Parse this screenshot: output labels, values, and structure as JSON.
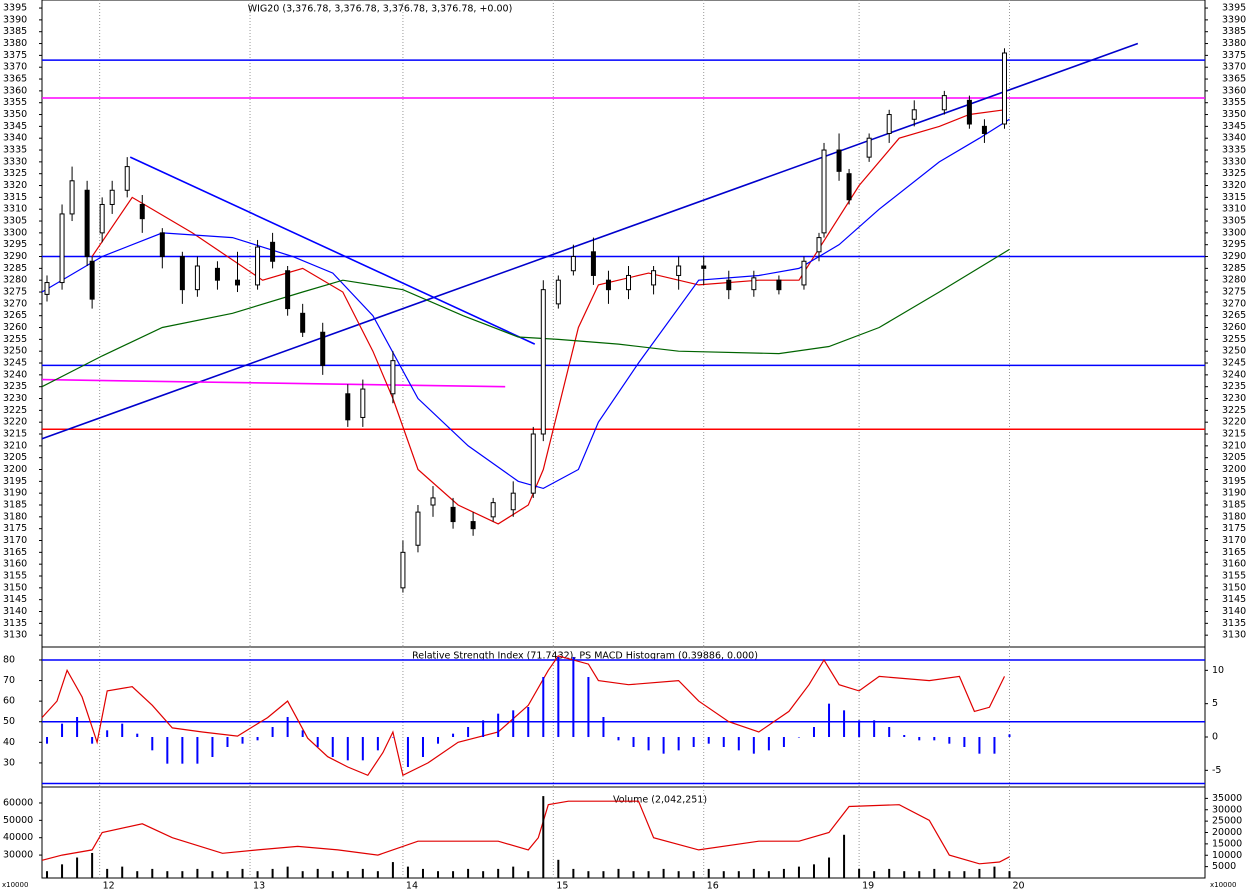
{
  "chart_data": [
    {
      "type": "candlestick",
      "title": "WIG20 (3,376.78, 3,376.78, 3,376.78, 3,376.78, +0.00)",
      "x": [
        1,
        4,
        6,
        9,
        10,
        12,
        14,
        17,
        20,
        24,
        28,
        31,
        35,
        39,
        43,
        46,
        49,
        52,
        56,
        61,
        64,
        70,
        72,
        75,
        78,
        82,
        86,
        90,
        94,
        98,
        100,
        103,
        106,
        110,
        113,
        117,
        122,
        127,
        132,
        137,
        142,
        147,
        152,
        155,
        156,
        159,
        161,
        165,
        169,
        174,
        180,
        185,
        188,
        192
      ],
      "open": [
        3274,
        3279,
        3308,
        3318,
        3288,
        3300,
        3312,
        3318,
        3312,
        3300,
        3290,
        3276,
        3285,
        3280,
        3278,
        3296,
        3284,
        3266,
        3258,
        3232,
        3222,
        3232,
        3150,
        3168,
        3185,
        3184,
        3178,
        3180,
        3183,
        3190,
        3215,
        3270,
        3284,
        3292,
        3280,
        3276,
        3278,
        3282,
        3286,
        3280,
        3276,
        3280,
        3278,
        3292,
        3300,
        3335,
        3325,
        3332,
        3342,
        3348,
        3352,
        3356,
        3345,
        3346
      ],
      "high": [
        3282,
        3312,
        3328,
        3322,
        3290,
        3315,
        3322,
        3332,
        3316,
        3302,
        3292,
        3290,
        3288,
        3292,
        3297,
        3300,
        3286,
        3270,
        3262,
        3236,
        3238,
        3250,
        3170,
        3185,
        3193,
        3188,
        3182,
        3188,
        3195,
        3218,
        3280,
        3282,
        3295,
        3298,
        3284,
        3286,
        3286,
        3290,
        3290,
        3284,
        3284,
        3282,
        3290,
        3300,
        3338,
        3342,
        3327,
        3342,
        3352,
        3356,
        3360,
        3358,
        3348,
        3378
      ],
      "low": [
        3271,
        3276,
        3305,
        3286,
        3268,
        3296,
        3308,
        3315,
        3300,
        3285,
        3270,
        3273,
        3276,
        3275,
        3276,
        3285,
        3265,
        3256,
        3240,
        3218,
        3218,
        3228,
        3148,
        3165,
        3180,
        3175,
        3172,
        3178,
        3180,
        3188,
        3212,
        3268,
        3282,
        3278,
        3270,
        3272,
        3274,
        3276,
        3278,
        3272,
        3273,
        3274,
        3276,
        3288,
        3298,
        3322,
        3312,
        3330,
        3338,
        3345,
        3350,
        3344,
        3338,
        3344
      ],
      "close": [
        3279,
        3308,
        3322,
        3290,
        3272,
        3312,
        3318,
        3328,
        3306,
        3290,
        3276,
        3286,
        3280,
        3278,
        3294,
        3288,
        3268,
        3258,
        3244,
        3221,
        3234,
        3246,
        3165,
        3182,
        3188,
        3178,
        3175,
        3186,
        3190,
        3215,
        3276,
        3280,
        3290,
        3282,
        3276,
        3282,
        3284,
        3286,
        3285,
        3276,
        3281,
        3276,
        3288,
        3298,
        3335,
        3326,
        3314,
        3340,
        3350,
        3352,
        3358,
        3346,
        3342,
        3376
      ],
      "up_color": "#ffffff",
      "down_color": "#000000",
      "series": [
        {
          "color": "#e00000",
          "x": [
            10,
            18,
            30,
            44,
            52,
            60,
            66,
            70,
            75,
            83,
            91,
            97,
            100,
            107,
            111,
            121,
            131,
            143,
            151,
            157,
            163,
            171,
            179,
            185,
            192
          ],
          "values": [
            3290,
            3315,
            3300,
            3280,
            3285,
            3275,
            3250,
            3230,
            3200,
            3185,
            3177,
            3185,
            3200,
            3260,
            3278,
            3283,
            3278,
            3280,
            3280,
            3300,
            3320,
            3340,
            3345,
            3350,
            3352
          ]
        },
        {
          "color": "#0000ff",
          "x": [
            0,
            12,
            24,
            38,
            50,
            58,
            66,
            75,
            85,
            95,
            100,
            107,
            111,
            119,
            131,
            143,
            151,
            159,
            167,
            179,
            187,
            193
          ],
          "values": [
            3275,
            3290,
            3300,
            3298,
            3290,
            3283,
            3265,
            3230,
            3210,
            3195,
            3192,
            3200,
            3220,
            3245,
            3280,
            3282,
            3285,
            3295,
            3310,
            3330,
            3340,
            3348
          ]
        },
        {
          "color": "#006400",
          "x": [
            0,
            12,
            24,
            38,
            52,
            60,
            72,
            84,
            95,
            103,
            115,
            127,
            147,
            157,
            167,
            179,
            193
          ],
          "values": [
            3235,
            3248,
            3260,
            3266,
            3275,
            3280,
            3276,
            3265,
            3256,
            3255,
            3253,
            3250,
            3249,
            3252,
            3260,
            3275,
            3293
          ]
        }
      ],
      "levels": [
        {
          "value": 3373,
          "color": "#0000ff"
        },
        {
          "value": 3357,
          "color": "#ff00ff"
        },
        {
          "value": 3290,
          "color": "#0000ff"
        },
        {
          "value": 3244,
          "color": "#0000ff"
        },
        {
          "value": 3217,
          "color": "#ff0000"
        }
      ],
      "trendlines": [
        {
          "color": "#0000cc",
          "x": [
            0,
            218.6
          ],
          "y": [
            3213,
            3380
          ]
        },
        {
          "color": "#0000ff",
          "x": [
            17.6,
            98.3
          ],
          "y": [
            3332,
            3253
          ]
        },
        {
          "color": "#ff00ff",
          "x": [
            0,
            92.4
          ],
          "y": [
            3238,
            3235
          ]
        }
      ],
      "xlim": [
        0,
        232
      ],
      "xticks": [
        {
          "value": 11.5,
          "label": "12"
        },
        {
          "value": 41.5,
          "label": "13"
        },
        {
          "value": 72,
          "label": "14"
        },
        {
          "value": 102,
          "label": "15"
        },
        {
          "value": 132,
          "label": "16"
        },
        {
          "value": 163,
          "label": "19"
        },
        {
          "value": 193,
          "label": "20"
        }
      ],
      "ylim": [
        3125,
        3398.4
      ],
      "yticks": [
        3130,
        3135,
        3140,
        3145,
        3150,
        3155,
        3160,
        3165,
        3170,
        3175,
        3180,
        3185,
        3190,
        3195,
        3200,
        3205,
        3210,
        3215,
        3220,
        3225,
        3230,
        3235,
        3240,
        3245,
        3250,
        3255,
        3260,
        3265,
        3270,
        3275,
        3280,
        3285,
        3290,
        3295,
        3300,
        3305,
        3310,
        3315,
        3320,
        3325,
        3330,
        3335,
        3340,
        3345,
        3350,
        3355,
        3360,
        3365,
        3370,
        3375,
        3380,
        3385,
        3390,
        3395
      ]
    },
    {
      "type": "combo",
      "title": "Relative Strength Index (71.7432), PS MACD Histogram (0.39886, 0.000)",
      "ylim": [
        18.3,
        86.3
      ],
      "yticks": [
        30,
        40,
        50,
        60,
        70,
        80
      ],
      "y2lim": [
        -7.5,
        13.5
      ],
      "y2ticks": [
        -5,
        0,
        5,
        10
      ],
      "levels": [
        {
          "value": 80,
          "color": "#0000ff"
        },
        {
          "value": 50,
          "color": "#0000ff"
        },
        {
          "value": 20,
          "color": "#0000ff"
        }
      ],
      "series": [
        {
          "style": "line",
          "color": "#e00000",
          "x": [
            0,
            3,
            5,
            8,
            11,
            13,
            18,
            22,
            26,
            32,
            39,
            45,
            49,
            53,
            57,
            61,
            65,
            68,
            70,
            72,
            77,
            83,
            91,
            97,
            101,
            103,
            109,
            111,
            117,
            127,
            131,
            137,
            143,
            149,
            153,
            156,
            159,
            163,
            167,
            177,
            183,
            186,
            189,
            192
          ],
          "values": [
            52,
            60,
            75,
            62,
            40,
            65,
            67,
            58,
            47,
            45,
            43,
            52,
            60,
            42,
            33,
            28,
            24,
            35,
            45,
            24,
            30,
            40,
            45,
            58,
            75,
            82,
            78,
            70,
            68,
            70,
            60,
            50,
            45,
            55,
            68,
            80,
            68,
            65,
            72,
            70,
            72,
            55,
            57,
            72
          ]
        },
        {
          "style": "bar",
          "axis": "y2",
          "color": "#0000ff",
          "x": [
            1,
            4,
            7,
            10,
            13,
            16,
            19,
            22,
            25,
            28,
            31,
            34,
            37,
            40,
            43,
            46,
            49,
            52,
            55,
            58,
            61,
            64,
            67,
            70,
            73,
            76,
            79,
            82,
            85,
            88,
            91,
            94,
            97,
            100,
            103,
            106,
            109,
            112,
            115,
            118,
            121,
            124,
            127,
            130,
            133,
            136,
            139,
            142,
            145,
            148,
            151,
            154,
            157,
            160,
            163,
            166,
            169,
            172,
            175,
            178,
            181,
            184,
            187,
            190,
            193
          ],
          "values": [
            -1,
            2,
            3,
            -1,
            1,
            2,
            0.5,
            -2,
            -4,
            -4,
            -4,
            -3,
            -1.5,
            -1,
            -0.5,
            1.5,
            3,
            1,
            -1.5,
            -3,
            -3.5,
            -3.5,
            -2,
            0,
            -4.5,
            -3,
            -1,
            0.5,
            1.5,
            2.5,
            3.5,
            4,
            4.5,
            9,
            12,
            12,
            9,
            3,
            -0.5,
            -1.5,
            -2,
            -2.5,
            -2,
            -1.5,
            -1,
            -1.5,
            -2,
            -2.5,
            -2,
            -1.5,
            0,
            1.5,
            5,
            4,
            2.5,
            2.5,
            1.5,
            0.3,
            -0.5,
            -0.5,
            -1,
            -1.5,
            -2.5,
            -2.5,
            0.4
          ]
        }
      ]
    },
    {
      "type": "combo",
      "title": "Volume (2,042,251)",
      "ylim": [
        16800,
        69200
      ],
      "yticks": [
        30000,
        40000,
        50000,
        60000
      ],
      "y2lim": [
        0,
        40000
      ],
      "y2ticks": [
        5000,
        10000,
        15000,
        20000,
        25000,
        30000,
        35000
      ],
      "y_unit": "x10000",
      "y2_unit": "x10000",
      "series": [
        {
          "style": "line",
          "color": "#e00000",
          "x": [
            0,
            4,
            10,
            12,
            20,
            26,
            36,
            43,
            51,
            59,
            67,
            75,
            83,
            91,
            97,
            99,
            101,
            105,
            119,
            122,
            131,
            143,
            151,
            157,
            161,
            171,
            177,
            181,
            187,
            191,
            193
          ],
          "values": [
            27000,
            30000,
            33000,
            43000,
            48000,
            40000,
            31000,
            33000,
            35000,
            33000,
            30000,
            38000,
            38000,
            38000,
            33000,
            40000,
            59000,
            61000,
            61000,
            40000,
            33000,
            38000,
            38000,
            43000,
            58000,
            59000,
            50000,
            30000,
            25000,
            26000,
            29000
          ]
        },
        {
          "style": "bar",
          "axis": "y2",
          "color": "#000000",
          "x": [
            1,
            4,
            7,
            10,
            13,
            16,
            19,
            22,
            25,
            28,
            31,
            34,
            37,
            40,
            43,
            46,
            49,
            52,
            55,
            58,
            61,
            64,
            67,
            70,
            73,
            76,
            79,
            82,
            85,
            88,
            91,
            94,
            97,
            100,
            103,
            106,
            109,
            112,
            115,
            118,
            121,
            124,
            127,
            130,
            133,
            136,
            139,
            142,
            145,
            148,
            151,
            154,
            157,
            160,
            163,
            166,
            169,
            172,
            175,
            178,
            181,
            184,
            187,
            190,
            193
          ],
          "values": [
            3000,
            6000,
            9000,
            11000,
            4000,
            5000,
            3000,
            4000,
            3000,
            3000,
            4000,
            3000,
            3000,
            4000,
            3000,
            4000,
            5000,
            3000,
            4000,
            3000,
            3000,
            4000,
            3000,
            7000,
            5000,
            4000,
            3000,
            3000,
            4000,
            3000,
            4000,
            5000,
            3000,
            36000,
            8000,
            4000,
            3000,
            3000,
            4000,
            3000,
            3000,
            4000,
            3000,
            3000,
            4000,
            3000,
            3000,
            4000,
            3000,
            4000,
            5000,
            6000,
            9000,
            19000,
            4000,
            3000,
            4000,
            3000,
            3000,
            4000,
            3000,
            3000,
            4000,
            5000,
            3000
          ]
        }
      ]
    }
  ]
}
